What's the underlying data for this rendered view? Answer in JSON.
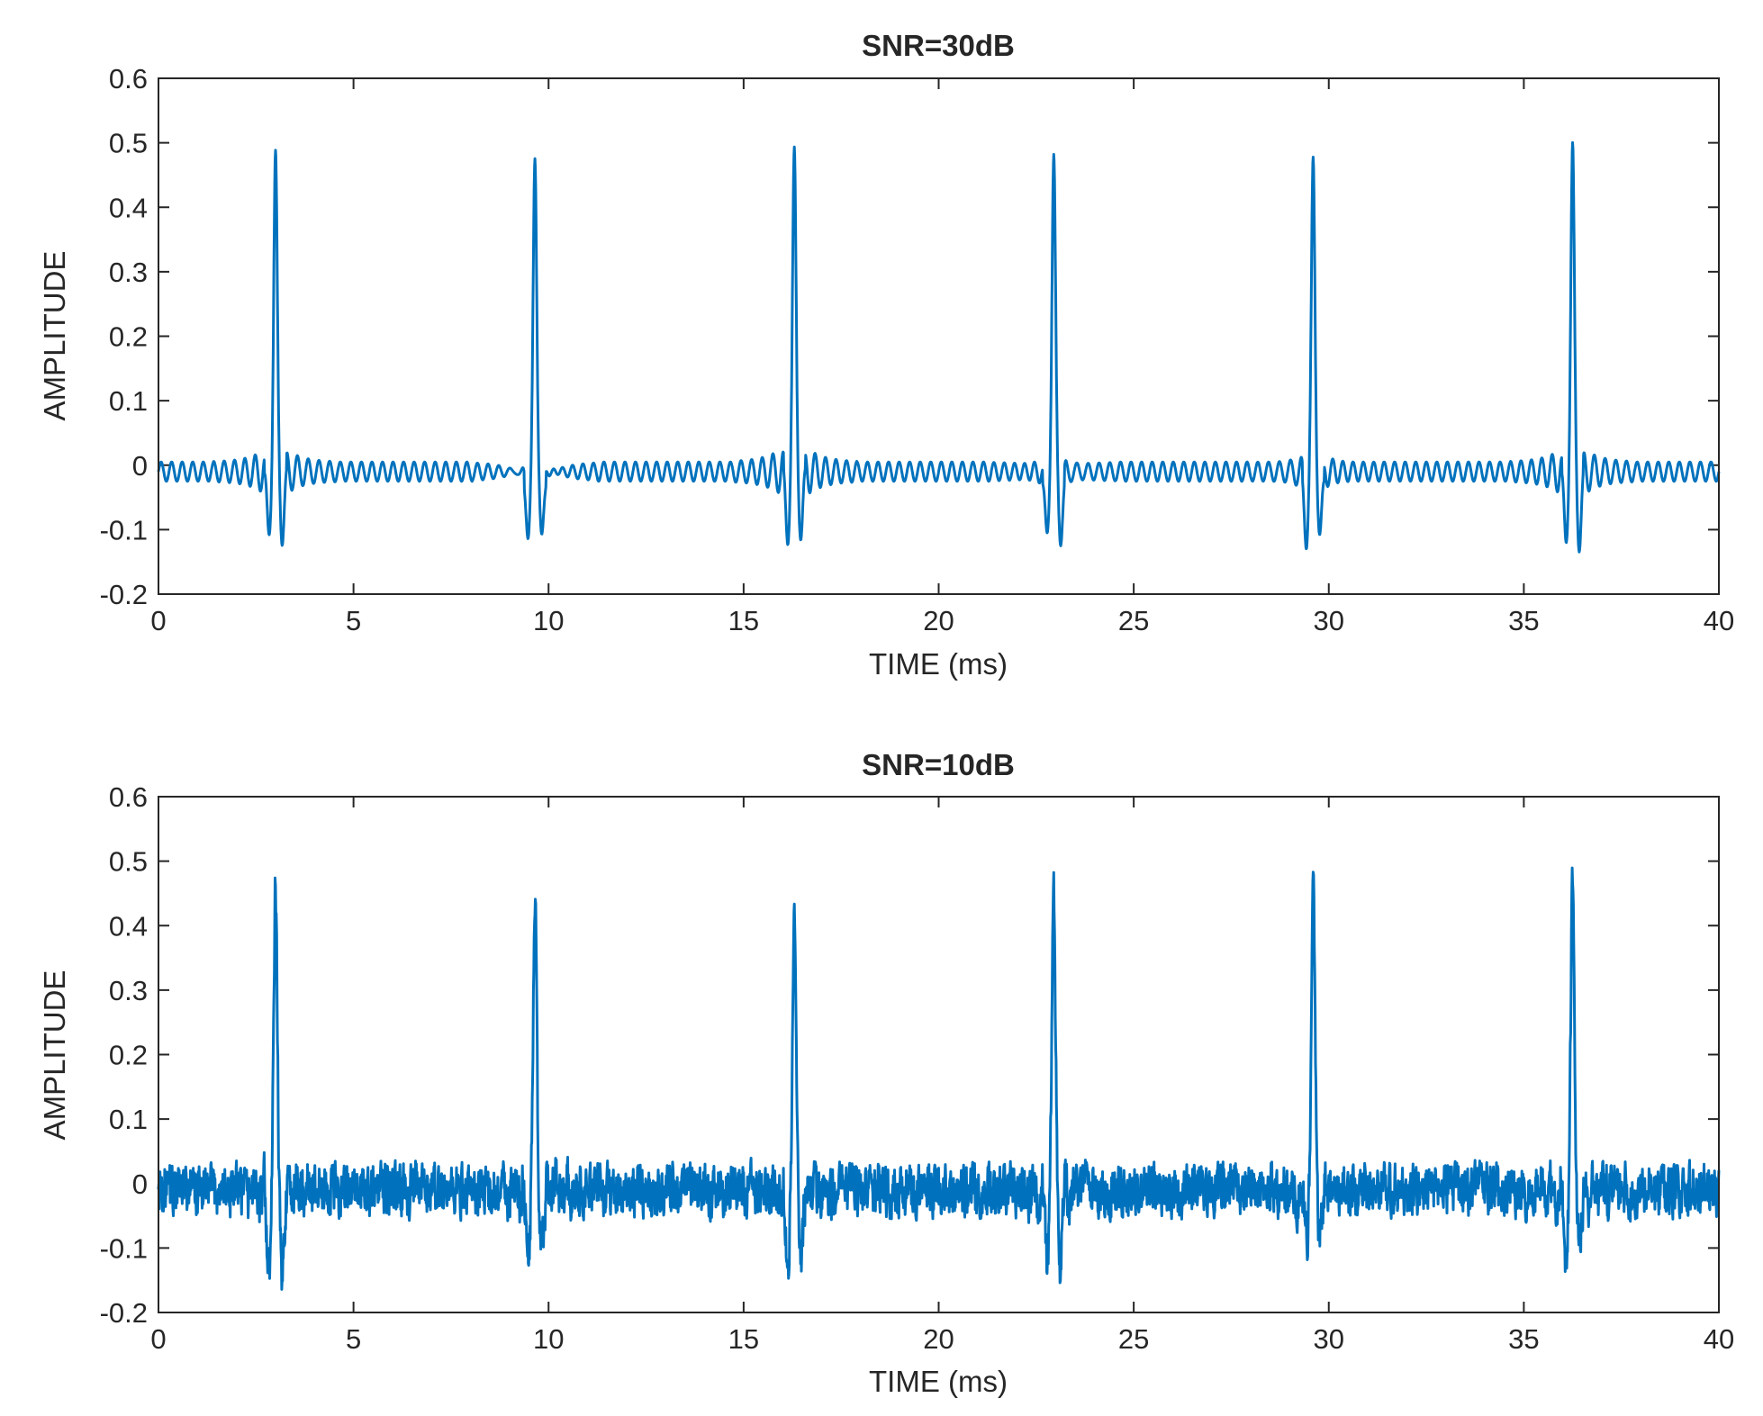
{
  "chart_data": [
    {
      "type": "line",
      "title": "SNR=30dB",
      "xlabel": "TIME (ms)",
      "ylabel": "AMPLITUDE",
      "xlim": [
        0,
        40
      ],
      "ylim": [
        -0.2,
        0.6
      ],
      "xticks": [
        "0",
        "5",
        "10",
        "15",
        "20",
        "25",
        "30",
        "35",
        "40"
      ],
      "yticks": [
        "-0.2",
        "-0.1",
        "0",
        "0.1",
        "0.2",
        "0.3",
        "0.4",
        "0.5",
        "0.6"
      ],
      "grid": false,
      "line_color": "#0072BD",
      "series": [
        {
          "pulse_period_ms": 6.65,
          "pulse_times_ms": [
            3.0,
            9.65,
            16.3,
            22.95,
            29.6,
            36.25
          ],
          "pulse_peaks": [
            0.48,
            0.49,
            0.48,
            0.49,
            0.48,
            0.49
          ],
          "pulse_troughs": [
            -0.11,
            -0.12,
            -0.11,
            -0.12,
            -0.12,
            -0.12
          ],
          "baseline": -0.01,
          "ripple_amplitude": 0.015
        }
      ]
    },
    {
      "type": "line",
      "title": "SNR=10dB",
      "xlabel": "TIME (ms)",
      "ylabel": "AMPLITUDE",
      "xlim": [
        0,
        40
      ],
      "ylim": [
        -0.2,
        0.6
      ],
      "xticks": [
        "0",
        "5",
        "10",
        "15",
        "20",
        "25",
        "30",
        "35",
        "40"
      ],
      "yticks": [
        "-0.2",
        "-0.1",
        "0",
        "0.1",
        "0.2",
        "0.3",
        "0.4",
        "0.5",
        "0.6"
      ],
      "grid": false,
      "line_color": "#0072BD",
      "series": [
        {
          "pulse_period_ms": 6.65,
          "pulse_times_ms": [
            3.0,
            9.65,
            16.3,
            22.95,
            29.6,
            36.25
          ],
          "pulse_peaks": [
            0.455,
            0.445,
            0.415,
            0.44,
            0.475,
            0.465
          ],
          "pulse_troughs": [
            -0.14,
            -0.11,
            -0.12,
            -0.12,
            -0.09,
            -0.11
          ],
          "baseline": -0.01,
          "noise_amplitude": 0.035
        }
      ]
    }
  ]
}
